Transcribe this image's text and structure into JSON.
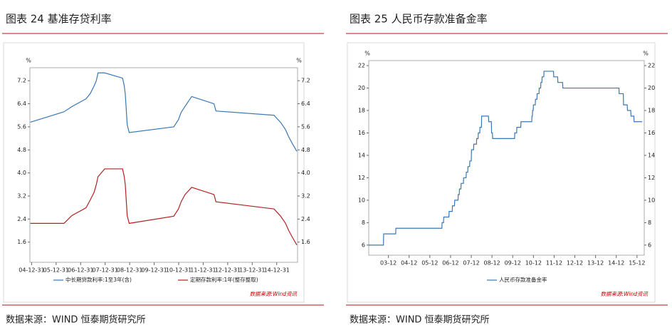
{
  "chart_data": [
    {
      "type": "line",
      "title": "图表 24 基准存贷利率",
      "source": "数据来源：WIND 恒泰期货研究所",
      "note": "数据来源:Wind资讯",
      "y_label": "%",
      "y2_label": "%",
      "x": [
        2004.95,
        2006.32,
        2006.64,
        2007.22,
        2007.39,
        2007.55,
        2007.64,
        2007.71,
        2007.98,
        2008.71,
        2008.78,
        2008.82,
        2008.9,
        2008.98,
        2010.8,
        2010.99,
        2011.1,
        2011.26,
        2011.53,
        2012.44,
        2012.52,
        2014.89,
        2015.16,
        2015.36,
        2015.49,
        2015.65,
        2015.82
      ],
      "series": [
        {
          "name": "中长期贷款利率:1至3年(含)",
          "color": "#3a78b5",
          "values": [
            5.76,
            6.12,
            6.3,
            6.57,
            6.75,
            7.02,
            7.2,
            7.47,
            7.47,
            7.29,
            7.02,
            6.75,
            5.67,
            5.4,
            5.6,
            5.85,
            6.1,
            6.31,
            6.65,
            6.4,
            6.15,
            6.0,
            5.75,
            5.5,
            5.25,
            5.0,
            4.75
          ]
        },
        {
          "name": "定期存款利率:1年(整存整取)",
          "color": "#b22222",
          "values": [
            2.25,
            2.25,
            2.52,
            2.79,
            3.06,
            3.33,
            3.6,
            3.87,
            4.14,
            4.14,
            3.87,
            3.6,
            2.52,
            2.25,
            2.5,
            2.75,
            3.0,
            3.25,
            3.5,
            3.25,
            3.0,
            2.75,
            2.5,
            2.25,
            2.0,
            1.75,
            1.5
          ]
        }
      ],
      "xlim": [
        2004.93,
        2015.85
      ],
      "xticks": [
        {
          "value": 2005,
          "label": "04-12-31"
        },
        {
          "value": 2006,
          "label": "05-12-31"
        },
        {
          "value": 2007,
          "label": "06-12-31"
        },
        {
          "value": 2008,
          "label": "07-12-31"
        },
        {
          "value": 2009,
          "label": "08-12-31"
        },
        {
          "value": 2010,
          "label": "09-12-31"
        },
        {
          "value": 2011,
          "label": "10-12-31"
        },
        {
          "value": 2012,
          "label": "11-12-31"
        },
        {
          "value": 2013,
          "label": "12-12-31"
        },
        {
          "value": 2014,
          "label": "13-12-31"
        },
        {
          "value": 2015,
          "label": "14-12-31"
        }
      ],
      "ylim": [
        0.9,
        7.65
      ],
      "yticks": [
        1.6,
        2.4,
        3.2,
        {
          "value": 4,
          "label": "4.0"
        },
        4.8,
        5.6,
        6.4,
        7.2
      ],
      "y2lim": [
        0.9,
        7.65
      ],
      "y2ticks": [
        1.6,
        2.4,
        3.2,
        {
          "value": 4,
          "label": "4.0"
        },
        4.8,
        5.6,
        6.4,
        7.2
      ]
    },
    {
      "type": "line",
      "title": "图表 25 人民币存款准备金率",
      "source": "数据来源：WIND 恒泰期货研究所",
      "note": "数据来源:Wind资讯",
      "y_label": "%",
      "y2_label": "%",
      "x": [
        2003.0,
        2003.71,
        2003.72,
        2004.3,
        2004.31,
        2006.53,
        2006.54,
        2006.61,
        2006.62,
        2006.87,
        2006.88,
        2007.03,
        2007.04,
        2007.14,
        2007.15,
        2007.31,
        2007.32,
        2007.37,
        2007.38,
        2007.45,
        2007.46,
        2007.57,
        2007.58,
        2007.7,
        2007.71,
        2007.78,
        2007.79,
        2007.87,
        2007.88,
        2007.95,
        2007.96,
        2008.06,
        2008.07,
        2008.2,
        2008.21,
        2008.28,
        2008.29,
        2008.36,
        2008.37,
        2008.44,
        2008.45,
        2008.78,
        2008.79,
        2008.92,
        2008.93,
        2008.97,
        2008.98,
        2010.04,
        2010.05,
        2010.14,
        2010.15,
        2010.34,
        2010.35,
        2010.87,
        2010.88,
        2010.9,
        2010.91,
        2010.94,
        2010.95,
        2011.04,
        2011.05,
        2011.12,
        2011.13,
        2011.22,
        2011.23,
        2011.3,
        2011.31,
        2011.36,
        2011.37,
        2011.45,
        2011.46,
        2011.92,
        2011.93,
        2012.12,
        2012.13,
        2012.36,
        2012.37,
        2015.08,
        2015.09,
        2015.29,
        2015.3,
        2015.48,
        2015.49,
        2015.65,
        2015.66,
        2015.8,
        2015.81,
        2016.2
      ],
      "series": [
        {
          "name": "人民币存款准备金率",
          "color": "#3a78b5",
          "values": [
            6,
            6,
            7,
            7,
            7.5,
            7.5,
            8,
            8,
            8.5,
            8.5,
            9,
            9,
            9.5,
            9.5,
            10,
            10,
            10.5,
            10.5,
            11,
            11,
            11.5,
            11.5,
            12,
            12,
            12.5,
            12.5,
            13,
            13,
            13.5,
            13.5,
            14.5,
            14.5,
            15,
            15,
            15.5,
            15.5,
            16,
            16,
            16.5,
            16.5,
            17.5,
            17.5,
            17,
            17,
            16,
            16,
            15.5,
            15.5,
            16,
            16,
            16.5,
            16.5,
            17,
            17,
            17.5,
            17.5,
            18,
            18,
            18.5,
            18.5,
            19,
            19,
            19.5,
            19.5,
            20,
            20,
            20.5,
            20.5,
            21,
            21,
            21.5,
            21.5,
            21,
            21,
            20.5,
            20.5,
            20,
            20,
            19.5,
            19.5,
            18.5,
            18.5,
            18,
            18,
            17.5,
            17.5,
            17,
            17
          ]
        }
      ],
      "xlim": [
        2003.0,
        2016.3
      ],
      "xticks": [
        {
          "value": 2003.95,
          "label": "03-12"
        },
        {
          "value": 2004.95,
          "label": "04-12"
        },
        {
          "value": 2005.95,
          "label": "05-12"
        },
        {
          "value": 2006.95,
          "label": "06-12"
        },
        {
          "value": 2007.95,
          "label": "07-12"
        },
        {
          "value": 2008.95,
          "label": "08-12"
        },
        {
          "value": 2009.95,
          "label": "09-12"
        },
        {
          "value": 2010.95,
          "label": "10-12"
        },
        {
          "value": 2011.95,
          "label": "11-12"
        },
        {
          "value": 2012.95,
          "label": "12-12"
        },
        {
          "value": 2013.95,
          "label": "13-12"
        },
        {
          "value": 2014.95,
          "label": "14-12"
        },
        {
          "value": 2015.95,
          "label": "15-12"
        }
      ],
      "ylim": [
        5.1,
        22.45
      ],
      "yticks": [
        6,
        8,
        10,
        12,
        14,
        16,
        18,
        20,
        22
      ],
      "y2lim": [
        5.1,
        22.45
      ],
      "y2ticks": [
        6,
        8,
        10,
        12,
        14,
        16,
        18,
        20,
        22
      ]
    }
  ]
}
